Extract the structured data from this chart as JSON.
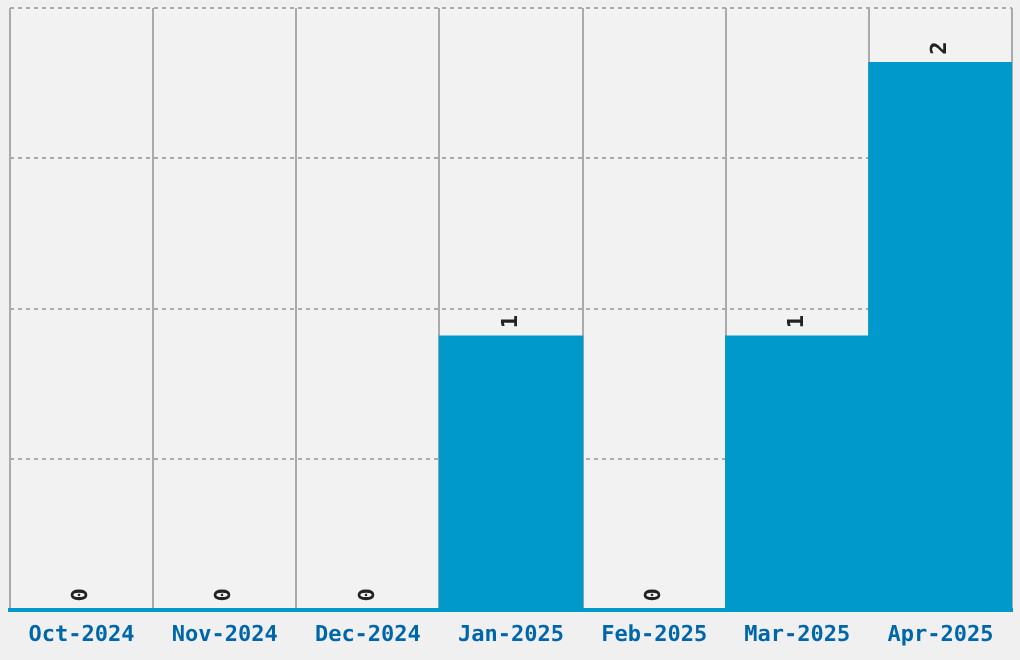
{
  "chart_data": {
    "type": "bar",
    "categories": [
      "Oct-2024",
      "Nov-2024",
      "Dec-2024",
      "Jan-2025",
      "Feb-2025",
      "Mar-2025",
      "Apr-2025"
    ],
    "values": [
      0,
      0,
      0,
      1,
      0,
      1,
      2
    ],
    "color": "#0099cc",
    "ylim": [
      0,
      2.2
    ],
    "yticks": [
      {
        "value": 0,
        "label": null
      },
      {
        "value": 0.55,
        "label": null
      },
      {
        "value": 1.1,
        "label": null
      },
      {
        "value": 1.65,
        "label": null
      },
      {
        "value": 2.2,
        "label": null
      }
    ],
    "tick_labels": "x",
    "grid": true,
    "data_labels": true
  }
}
